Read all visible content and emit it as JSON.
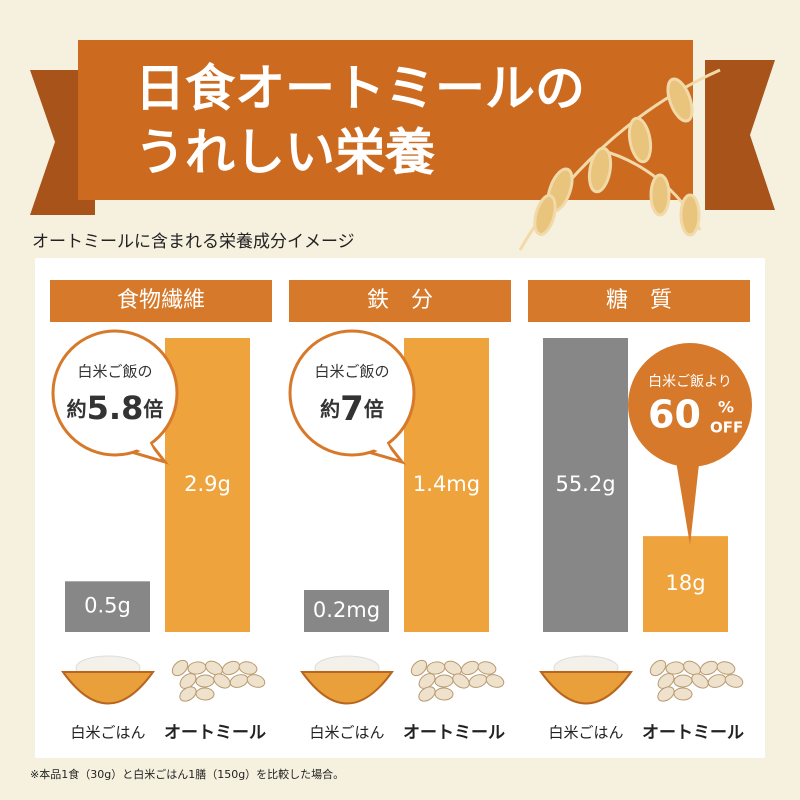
{
  "header": {
    "title_lines": [
      "日食オートミールの",
      "うれしい栄養"
    ],
    "subtitle": "オートミールに含まれる栄養成分イメージ"
  },
  "chart_data": [
    {
      "type": "bar",
      "title": "食物繊維",
      "categories": [
        "白米ごはん",
        "オートミール"
      ],
      "values": [
        0.5,
        2.9
      ],
      "value_labels": [
        "0.5g",
        "2.9g"
      ],
      "colors": [
        "#878787",
        "#eea33d"
      ],
      "callout": {
        "lead": "白米ご飯の",
        "parts": [
          "約",
          "5.8",
          "倍"
        ]
      }
    },
    {
      "type": "bar",
      "title": "鉄　分",
      "categories": [
        "白米ごはん",
        "オートミール"
      ],
      "values": [
        0.2,
        1.4
      ],
      "value_labels": [
        "0.2mg",
        "1.4mg"
      ],
      "colors": [
        "#878787",
        "#eea33d"
      ],
      "callout": {
        "lead": "白米ご飯の",
        "parts": [
          "約",
          "7",
          "倍"
        ]
      }
    },
    {
      "type": "bar",
      "title": "糖　質",
      "categories": [
        "白米ごはん",
        "オートミール"
      ],
      "values": [
        55.2,
        18
      ],
      "value_labels": [
        "55.2g",
        "18g"
      ],
      "colors": [
        "#878787",
        "#eea33d"
      ],
      "callout": {
        "lead": "白米ご飯より",
        "parts": [
          "60",
          "%",
          "OFF"
        ]
      }
    }
  ],
  "footnote": "※本品1食（30g）と白米ごはん1膳（150g）を比較した場合。"
}
